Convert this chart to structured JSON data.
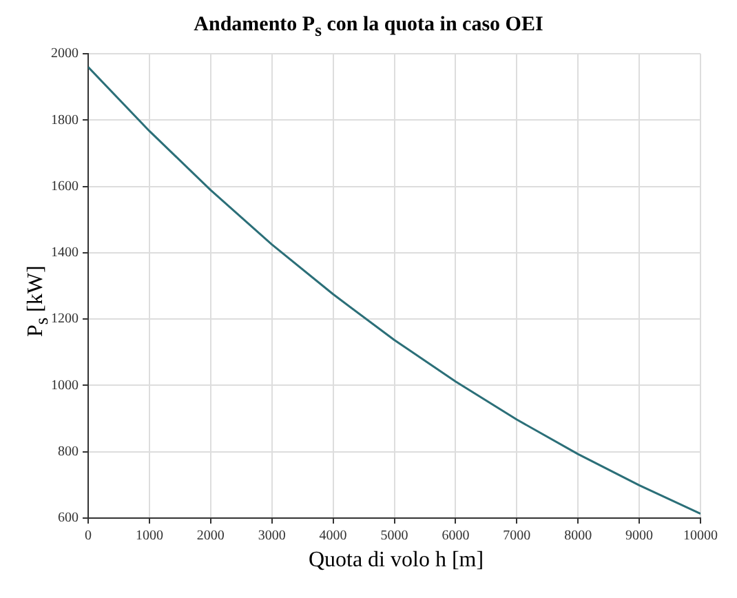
{
  "chart_data": {
    "type": "line",
    "title": "Andamento P$_{s}$ con la quota in caso OEI",
    "xlabel": "Quota di volo h [m]",
    "ylabel": "P$_{s}$ [kW]",
    "x": [
      0,
      1000,
      2000,
      3000,
      4000,
      5000,
      6000,
      7000,
      8000,
      9000,
      10000
    ],
    "series": [
      {
        "color": "#2b6f78",
        "values": [
          1960,
          1767,
          1589,
          1425,
          1275,
          1137,
          1012,
          897,
          793,
          699,
          613
        ]
      }
    ],
    "xlim": [
      0,
      10000
    ],
    "xticks": [
      0,
      1000,
      2000,
      3000,
      4000,
      5000,
      6000,
      7000,
      8000,
      9000,
      10000
    ],
    "ylim": [
      600,
      2000
    ],
    "yticks": [
      600,
      800,
      1000,
      1200,
      1400,
      1600,
      1800,
      2000
    ],
    "grid": true,
    "legend": false,
    "marker": "none",
    "line_style": "solid"
  }
}
